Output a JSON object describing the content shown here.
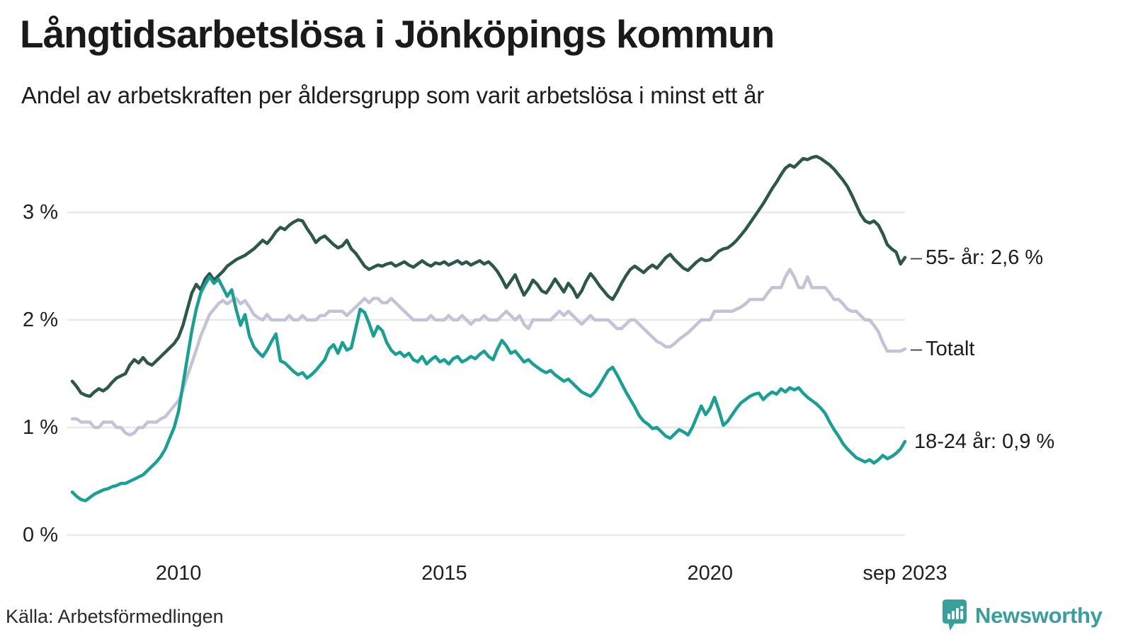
{
  "header": {
    "title": "Långtidsarbetslösa i Jönköpings kommun",
    "subtitle": "Andel av arbetskraften per åldersgrupp som varit arbetslösa i minst ett år"
  },
  "chart_data": {
    "type": "line",
    "title": "Långtidsarbetslösa i Jönköpings kommun",
    "unit": "%",
    "frequency": "monthly",
    "x_start": "2008-01",
    "x_end": "2023-09",
    "ylim": [
      0,
      3.7
    ],
    "grid": "horizontal",
    "legend_position": "line-end-labels",
    "colors": {
      "grid": "#e8e7ec",
      "text": "#1f1f1f",
      "background": "#ffffff"
    },
    "y_ticks": [
      {
        "value": 3,
        "label": "3 %"
      },
      {
        "value": 2,
        "label": "2 %"
      },
      {
        "value": 1,
        "label": "1 %"
      },
      {
        "value": 0,
        "label": "0 %"
      }
    ],
    "x_ticks": [
      {
        "month_index": 24,
        "label": "2010"
      },
      {
        "month_index": 84,
        "label": "2015"
      },
      {
        "month_index": 144,
        "label": "2020"
      },
      {
        "month_index": 188,
        "label": "sep 2023"
      }
    ],
    "series": [
      {
        "name": "55- år",
        "slug": "55-ar",
        "end_label": "55- år: 2,6 %",
        "leader": "–",
        "last_value": "2,6 %",
        "color": "#2e574b",
        "values": [
          1.43,
          1.38,
          1.32,
          1.3,
          1.29,
          1.33,
          1.36,
          1.34,
          1.37,
          1.42,
          1.46,
          1.48,
          1.5,
          1.58,
          1.63,
          1.6,
          1.65,
          1.6,
          1.58,
          1.62,
          1.66,
          1.7,
          1.74,
          1.78,
          1.84,
          1.95,
          2.1,
          2.25,
          2.33,
          2.28,
          2.38,
          2.43,
          2.37,
          2.41,
          2.45,
          2.5,
          2.53,
          2.56,
          2.58,
          2.6,
          2.63,
          2.66,
          2.7,
          2.74,
          2.71,
          2.76,
          2.82,
          2.86,
          2.84,
          2.88,
          2.91,
          2.93,
          2.92,
          2.85,
          2.79,
          2.72,
          2.76,
          2.78,
          2.74,
          2.7,
          2.67,
          2.69,
          2.74,
          2.66,
          2.62,
          2.56,
          2.5,
          2.47,
          2.49,
          2.51,
          2.5,
          2.52,
          2.53,
          2.5,
          2.52,
          2.54,
          2.51,
          2.49,
          2.52,
          2.55,
          2.52,
          2.5,
          2.53,
          2.52,
          2.54,
          2.51,
          2.53,
          2.55,
          2.52,
          2.54,
          2.51,
          2.53,
          2.55,
          2.52,
          2.54,
          2.5,
          2.45,
          2.38,
          2.3,
          2.36,
          2.42,
          2.32,
          2.23,
          2.29,
          2.37,
          2.33,
          2.27,
          2.25,
          2.31,
          2.38,
          2.32,
          2.26,
          2.34,
          2.29,
          2.21,
          2.27,
          2.36,
          2.43,
          2.38,
          2.32,
          2.27,
          2.22,
          2.19,
          2.26,
          2.34,
          2.41,
          2.47,
          2.5,
          2.47,
          2.44,
          2.48,
          2.51,
          2.48,
          2.53,
          2.58,
          2.61,
          2.56,
          2.52,
          2.48,
          2.46,
          2.5,
          2.54,
          2.57,
          2.55,
          2.56,
          2.6,
          2.64,
          2.66,
          2.67,
          2.7,
          2.74,
          2.79,
          2.84,
          2.9,
          2.96,
          3.02,
          3.08,
          3.15,
          3.22,
          3.28,
          3.35,
          3.41,
          3.44,
          3.42,
          3.46,
          3.5,
          3.49,
          3.51,
          3.52,
          3.5,
          3.47,
          3.44,
          3.4,
          3.35,
          3.3,
          3.24,
          3.16,
          3.07,
          2.98,
          2.92,
          2.9,
          2.92,
          2.88,
          2.8,
          2.7,
          2.66,
          2.63,
          2.52,
          2.58
        ]
      },
      {
        "name": "Totalt",
        "slug": "totalt",
        "end_label": "Totalt",
        "leader": "–",
        "last_value": "1,7 %",
        "color": "#c6c2d6",
        "values": [
          1.08,
          1.08,
          1.05,
          1.05,
          1.05,
          1.0,
          1.0,
          1.05,
          1.05,
          1.05,
          1.0,
          1.0,
          0.95,
          0.93,
          0.95,
          1.0,
          1.0,
          1.05,
          1.05,
          1.05,
          1.08,
          1.1,
          1.15,
          1.2,
          1.25,
          1.35,
          1.48,
          1.6,
          1.72,
          1.85,
          1.95,
          2.05,
          2.1,
          2.15,
          2.18,
          2.15,
          2.18,
          2.2,
          2.15,
          2.18,
          2.12,
          2.05,
          2.02,
          2.0,
          2.05,
          2.0,
          2.0,
          2.0,
          2.0,
          2.04,
          2.0,
          2.0,
          2.04,
          2.0,
          2.0,
          2.0,
          2.04,
          2.04,
          2.08,
          2.08,
          2.08,
          2.08,
          2.04,
          2.08,
          2.12,
          2.16,
          2.2,
          2.16,
          2.2,
          2.2,
          2.16,
          2.16,
          2.2,
          2.16,
          2.12,
          2.08,
          2.04,
          2.0,
          2.0,
          2.0,
          2.0,
          2.04,
          2.0,
          2.0,
          2.0,
          2.04,
          2.0,
          2.0,
          2.04,
          2.0,
          1.96,
          2.0,
          2.0,
          2.04,
          2.0,
          2.0,
          2.0,
          2.04,
          2.08,
          2.04,
          2.0,
          2.04,
          1.96,
          1.92,
          2.0,
          2.0,
          2.0,
          2.0,
          2.0,
          2.04,
          2.08,
          2.04,
          2.08,
          2.04,
          2.0,
          1.96,
          2.0,
          2.04,
          2.0,
          2.0,
          2.0,
          2.0,
          1.96,
          1.92,
          1.92,
          1.96,
          2.0,
          2.0,
          1.96,
          1.92,
          1.88,
          1.84,
          1.8,
          1.78,
          1.75,
          1.75,
          1.78,
          1.82,
          1.85,
          1.88,
          1.92,
          1.96,
          2.0,
          2.0,
          2.0,
          2.08,
          2.08,
          2.08,
          2.08,
          2.08,
          2.1,
          2.12,
          2.15,
          2.19,
          2.19,
          2.19,
          2.19,
          2.25,
          2.3,
          2.3,
          2.3,
          2.4,
          2.47,
          2.4,
          2.3,
          2.3,
          2.4,
          2.3,
          2.3,
          2.3,
          2.3,
          2.25,
          2.19,
          2.19,
          2.15,
          2.1,
          2.08,
          2.08,
          2.04,
          2.0,
          2.0,
          1.95,
          1.89,
          1.79,
          1.71,
          1.71,
          1.71,
          1.71,
          1.73
        ]
      },
      {
        "name": "18-24 år",
        "slug": "18-24-ar",
        "end_label": "18-24 år: 0,9 %",
        "leader": "",
        "last_value": "0,9 %",
        "color": "#18a092",
        "values": [
          0.4,
          0.36,
          0.33,
          0.32,
          0.35,
          0.38,
          0.4,
          0.42,
          0.43,
          0.45,
          0.46,
          0.48,
          0.48,
          0.5,
          0.52,
          0.54,
          0.56,
          0.6,
          0.64,
          0.68,
          0.73,
          0.8,
          0.9,
          1.0,
          1.15,
          1.4,
          1.65,
          1.9,
          2.1,
          2.25,
          2.33,
          2.4,
          2.34,
          2.38,
          2.3,
          2.22,
          2.28,
          2.1,
          1.95,
          2.05,
          1.85,
          1.75,
          1.7,
          1.66,
          1.72,
          1.8,
          1.87,
          1.62,
          1.6,
          1.56,
          1.52,
          1.49,
          1.51,
          1.46,
          1.49,
          1.53,
          1.58,
          1.63,
          1.73,
          1.77,
          1.69,
          1.79,
          1.72,
          1.74,
          1.92,
          2.1,
          2.07,
          1.97,
          1.85,
          1.94,
          1.9,
          1.79,
          1.72,
          1.68,
          1.7,
          1.66,
          1.69,
          1.63,
          1.61,
          1.66,
          1.59,
          1.63,
          1.66,
          1.61,
          1.63,
          1.59,
          1.64,
          1.66,
          1.61,
          1.63,
          1.66,
          1.64,
          1.68,
          1.71,
          1.66,
          1.63,
          1.73,
          1.81,
          1.76,
          1.69,
          1.71,
          1.66,
          1.61,
          1.63,
          1.59,
          1.56,
          1.53,
          1.51,
          1.53,
          1.49,
          1.46,
          1.43,
          1.45,
          1.41,
          1.37,
          1.33,
          1.31,
          1.29,
          1.33,
          1.39,
          1.46,
          1.53,
          1.56,
          1.49,
          1.41,
          1.33,
          1.26,
          1.19,
          1.11,
          1.06,
          1.03,
          0.99,
          1.0,
          0.96,
          0.92,
          0.9,
          0.94,
          0.98,
          0.96,
          0.93,
          1.0,
          1.1,
          1.2,
          1.12,
          1.18,
          1.28,
          1.16,
          1.02,
          1.06,
          1.12,
          1.18,
          1.23,
          1.26,
          1.29,
          1.31,
          1.32,
          1.26,
          1.3,
          1.33,
          1.31,
          1.36,
          1.33,
          1.37,
          1.35,
          1.37,
          1.32,
          1.28,
          1.25,
          1.22,
          1.18,
          1.13,
          1.05,
          0.98,
          0.92,
          0.85,
          0.8,
          0.76,
          0.72,
          0.7,
          0.68,
          0.7,
          0.67,
          0.7,
          0.74,
          0.71,
          0.73,
          0.76,
          0.8,
          0.87
        ]
      }
    ]
  },
  "footer": {
    "source": "Källa: Arbetsförmedlingen",
    "brand": "Newsworthy",
    "brand_color": "#37a09b"
  }
}
